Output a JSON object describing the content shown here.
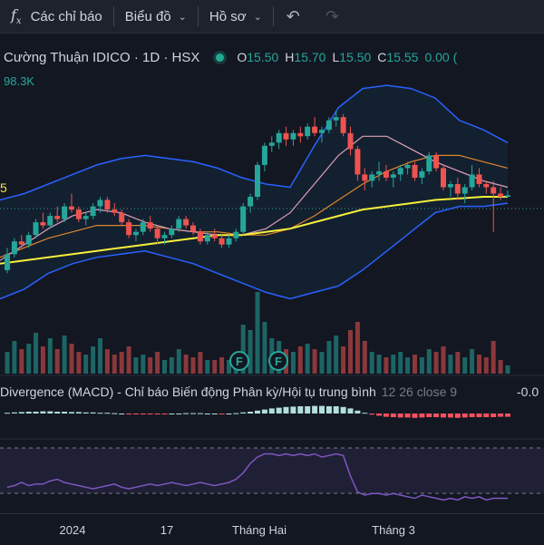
{
  "toolbar": {
    "indicators_label": "Các chỉ báo",
    "chart_type_label": "Biểu đồ",
    "profile_label": "Hồ sơ",
    "fx_symbol": "f",
    "fx_sub": "x"
  },
  "legend": {
    "title": "Cường Thuận IDICO · 1D · HSX",
    "open_key": "O",
    "open": "15.50",
    "high_key": "H",
    "high": "15.70",
    "low_key": "L",
    "low": "15.50",
    "close_key": "C",
    "close": "15.55",
    "change": "0.00 (",
    "volume": "98.3K",
    "status_color": "#22ab94"
  },
  "price_label_left": "5",
  "macd": {
    "label": "Divergence (MACD) - Chỉ báo Biến động Phân kỳ/Hội tụ trung bình",
    "params": "12 26 close 9",
    "value": "-0.0"
  },
  "x_axis": {
    "labels": [
      "2024",
      "17",
      "Tháng Hai",
      "Tháng 3"
    ]
  },
  "colors": {
    "up": "#26a69a",
    "down": "#ef5350",
    "bollinger": "#2962ff",
    "ma_short": "#e0a0b8",
    "ma_mid": "#e0862f",
    "ma_long": "#f5f03a",
    "rsi": "#7e57c2"
  },
  "chart_data": {
    "type": "candlestick",
    "symbol": "Cường Thuận IDICO",
    "interval": "1D",
    "exchange": "HSX",
    "candles": [
      [
        13.2,
        13.9,
        13.1,
        13.7,
        0.8
      ],
      [
        13.7,
        14.2,
        13.6,
        14.1,
        1.2
      ],
      [
        14.1,
        14.3,
        13.9,
        14.0,
        0.9
      ],
      [
        14.0,
        14.4,
        13.9,
        14.3,
        1.1
      ],
      [
        14.3,
        14.8,
        14.2,
        14.7,
        1.5
      ],
      [
        14.7,
        15.0,
        14.5,
        14.6,
        1.0
      ],
      [
        14.6,
        15.0,
        14.5,
        14.9,
        1.3
      ],
      [
        14.9,
        15.2,
        14.7,
        14.8,
        0.9
      ],
      [
        14.8,
        15.3,
        14.7,
        15.2,
        1.4
      ],
      [
        15.2,
        15.6,
        15.0,
        15.1,
        1.1
      ],
      [
        15.1,
        15.2,
        14.7,
        14.8,
        0.8
      ],
      [
        14.8,
        15.0,
        14.6,
        14.9,
        0.7
      ],
      [
        14.9,
        15.3,
        14.8,
        15.2,
        1.0
      ],
      [
        15.2,
        15.5,
        15.0,
        15.4,
        1.3
      ],
      [
        15.4,
        15.5,
        15.0,
        15.1,
        0.9
      ],
      [
        15.1,
        15.3,
        14.9,
        15.0,
        0.7
      ],
      [
        15.0,
        15.1,
        14.6,
        14.7,
        0.8
      ],
      [
        14.7,
        14.8,
        14.2,
        14.3,
        1.0
      ],
      [
        14.3,
        14.5,
        14.1,
        14.4,
        0.6
      ],
      [
        14.4,
        14.8,
        14.3,
        14.7,
        0.7
      ],
      [
        14.7,
        14.9,
        14.4,
        14.5,
        0.6
      ],
      [
        14.5,
        14.6,
        14.0,
        14.2,
        0.8
      ],
      [
        14.2,
        14.4,
        14.0,
        14.3,
        0.5
      ],
      [
        14.3,
        14.6,
        14.2,
        14.5,
        0.6
      ],
      [
        14.5,
        14.9,
        14.4,
        14.8,
        0.9
      ],
      [
        14.8,
        14.9,
        14.5,
        14.6,
        0.7
      ],
      [
        14.6,
        14.7,
        14.3,
        14.4,
        0.6
      ],
      [
        14.4,
        14.5,
        14.0,
        14.1,
        0.8
      ],
      [
        14.1,
        14.4,
        14.0,
        14.3,
        0.5
      ],
      [
        14.3,
        14.5,
        14.1,
        14.2,
        0.5
      ],
      [
        14.2,
        14.3,
        13.9,
        14.0,
        0.6
      ],
      [
        14.0,
        14.3,
        13.9,
        14.2,
        0.5
      ],
      [
        14.2,
        14.5,
        14.1,
        14.4,
        0.7
      ],
      [
        14.4,
        15.3,
        14.3,
        15.2,
        1.8
      ],
      [
        15.2,
        15.6,
        15.0,
        15.5,
        1.6
      ],
      [
        15.5,
        16.6,
        15.4,
        16.5,
        3.0
      ],
      [
        16.5,
        17.2,
        16.3,
        17.1,
        1.9
      ],
      [
        17.1,
        17.4,
        16.9,
        17.2,
        1.3
      ],
      [
        17.2,
        17.6,
        17.0,
        17.5,
        1.2
      ],
      [
        17.5,
        17.7,
        17.1,
        17.3,
        0.9
      ],
      [
        17.3,
        17.6,
        17.1,
        17.5,
        0.8
      ],
      [
        17.5,
        17.7,
        17.2,
        17.4,
        1.0
      ],
      [
        17.4,
        17.8,
        17.3,
        17.7,
        1.1
      ],
      [
        17.7,
        18.0,
        17.4,
        17.5,
        0.9
      ],
      [
        17.5,
        17.7,
        17.2,
        17.6,
        0.8
      ],
      [
        17.6,
        18.0,
        17.5,
        17.9,
        1.2
      ],
      [
        17.9,
        18.2,
        17.7,
        18.0,
        1.4
      ],
      [
        18.0,
        18.1,
        17.4,
        17.5,
        1.0
      ],
      [
        17.5,
        17.7,
        16.8,
        17.0,
        1.6
      ],
      [
        17.0,
        17.1,
        16.0,
        16.2,
        1.9
      ],
      [
        16.2,
        16.4,
        15.7,
        16.0,
        1.2
      ],
      [
        16.0,
        16.3,
        15.8,
        16.2,
        0.8
      ],
      [
        16.2,
        16.6,
        16.0,
        16.3,
        0.7
      ],
      [
        16.3,
        16.5,
        16.0,
        16.1,
        0.6
      ],
      [
        16.1,
        16.3,
        15.8,
        16.2,
        0.7
      ],
      [
        16.2,
        16.5,
        16.0,
        16.4,
        0.8
      ],
      [
        16.4,
        16.6,
        16.2,
        16.5,
        0.6
      ],
      [
        16.5,
        16.6,
        16.0,
        16.1,
        0.7
      ],
      [
        16.1,
        16.4,
        15.9,
        16.3,
        0.6
      ],
      [
        16.3,
        16.9,
        16.2,
        16.8,
        0.9
      ],
      [
        16.8,
        16.9,
        16.3,
        16.4,
        0.8
      ],
      [
        16.4,
        16.5,
        15.7,
        15.8,
        1.0
      ],
      [
        15.8,
        16.0,
        15.5,
        15.9,
        0.7
      ],
      [
        15.9,
        16.1,
        15.4,
        15.6,
        0.8
      ],
      [
        15.6,
        15.9,
        15.3,
        15.8,
        0.6
      ],
      [
        15.8,
        16.5,
        15.7,
        16.2,
        0.9
      ],
      [
        16.2,
        16.4,
        15.8,
        15.9,
        0.7
      ],
      [
        15.9,
        16.0,
        15.6,
        15.8,
        0.6
      ],
      [
        15.8,
        16.0,
        14.4,
        15.6,
        1.2
      ],
      [
        15.6,
        15.8,
        15.4,
        15.5,
        0.5
      ],
      [
        15.5,
        15.7,
        15.5,
        15.55,
        0.3
      ]
    ],
    "bollinger_upper": [
      15.4,
      15.6,
      15.9,
      16.2,
      16.5,
      16.7,
      16.8,
      16.7,
      16.6,
      16.4,
      16.1,
      15.9,
      15.8,
      17.1,
      18.3,
      18.9,
      19.0,
      18.9,
      18.6,
      17.9,
      17.6,
      17.2
    ],
    "bollinger_lower": [
      12.3,
      12.6,
      13.1,
      13.4,
      13.6,
      13.7,
      13.8,
      13.6,
      13.4,
      13.1,
      12.8,
      12.5,
      12.3,
      12.5,
      12.7,
      13.2,
      13.8,
      14.4,
      15.0,
      15.2,
      15.2,
      15.3
    ],
    "ma_short": [
      13.5,
      14.0,
      14.5,
      14.9,
      15.1,
      15.0,
      14.7,
      14.5,
      14.4,
      14.3,
      14.3,
      14.5,
      15.0,
      15.9,
      16.8,
      17.4,
      17.4,
      17.0,
      16.6,
      16.3,
      16.0,
      15.8
    ],
    "ma_mid": [
      13.6,
      13.9,
      14.2,
      14.4,
      14.6,
      14.6,
      14.6,
      14.5,
      14.4,
      14.4,
      14.3,
      14.3,
      14.5,
      14.9,
      15.4,
      15.9,
      16.3,
      16.6,
      16.8,
      16.8,
      16.6,
      16.4
    ],
    "ma_long": [
      13.4,
      13.5,
      13.6,
      13.7,
      13.8,
      13.9,
      14.0,
      14.1,
      14.2,
      14.3,
      14.3,
      14.4,
      14.5,
      14.7,
      14.9,
      15.1,
      15.2,
      15.3,
      15.4,
      15.45,
      15.5,
      15.5
    ],
    "macd_histogram": [
      0.02,
      0.03,
      0.04,
      0.05,
      0.05,
      0.06,
      0.06,
      0.05,
      0.05,
      0.04,
      0.04,
      0.03,
      0.03,
      0.02,
      0.02,
      0.01,
      0.0,
      -0.01,
      -0.01,
      -0.02,
      -0.02,
      -0.01,
      -0.01,
      0.0,
      0.0,
      0.01,
      0.01,
      0.01,
      0.0,
      0.0,
      -0.01,
      0.0,
      0.01,
      0.03,
      0.05,
      0.08,
      0.11,
      0.14,
      0.16,
      0.18,
      0.19,
      0.2,
      0.2,
      0.21,
      0.21,
      0.2,
      0.2,
      0.18,
      0.14,
      0.08,
      0.02,
      -0.03,
      -0.06,
      -0.09,
      -0.1,
      -0.11,
      -0.11,
      -0.12,
      -0.11,
      -0.1,
      -0.1,
      -0.11,
      -0.11,
      -0.12,
      -0.11,
      -0.1,
      -0.1,
      -0.1,
      -0.1,
      -0.09,
      -0.09
    ],
    "rsi": [
      53,
      54,
      56,
      54,
      55,
      55,
      57,
      58,
      56,
      55,
      54,
      53,
      52,
      53,
      54,
      55,
      53,
      52,
      53,
      54,
      55,
      54,
      55,
      56,
      55,
      54,
      55,
      56,
      55,
      54,
      55,
      56,
      58,
      62,
      68,
      72,
      74,
      74,
      73,
      74,
      73,
      74,
      73,
      74,
      72,
      73,
      74,
      73,
      60,
      50,
      48,
      49,
      49,
      48,
      49,
      48,
      47,
      46,
      48,
      47,
      46,
      45,
      46,
      45,
      47,
      46,
      47,
      45,
      46,
      46,
      46
    ],
    "earnings_markers": [
      "F",
      "F"
    ],
    "x_labels": [
      "2024",
      "17",
      "Tháng Hai",
      "Tháng 3"
    ]
  }
}
